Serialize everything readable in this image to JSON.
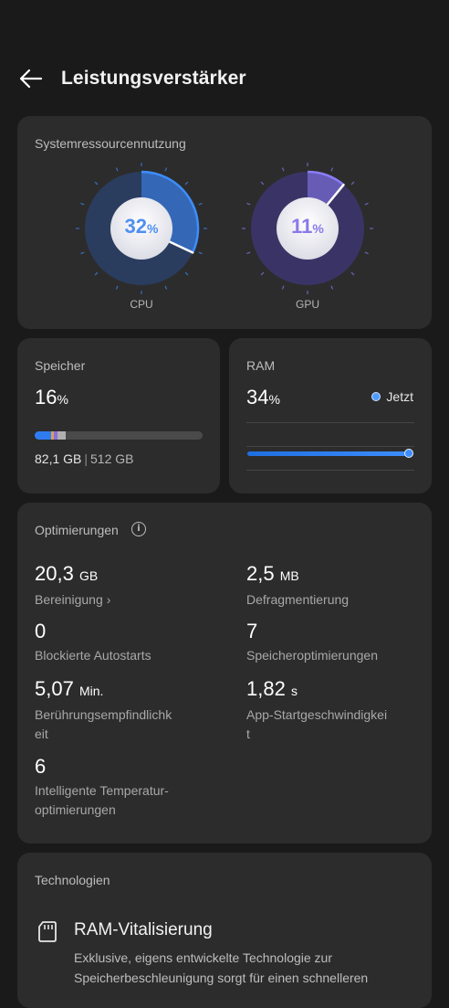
{
  "header": {
    "title": "Leistungsverstärker",
    "back_icon": "arrow-left-icon"
  },
  "system": {
    "title": "Systemressourcennutzung",
    "cpu": {
      "value": "32",
      "unit": "%",
      "caption": "CPU",
      "percent": 32,
      "color": "#3d8dff"
    },
    "gpu": {
      "value": "11",
      "unit": "%",
      "caption": "GPU",
      "percent": 11,
      "color": "#8b7cf6"
    }
  },
  "storage": {
    "title": "Speicher",
    "value": "16",
    "unit": "%",
    "used": "82,1 GB",
    "separator": "|",
    "total": "512 GB",
    "percent": 16
  },
  "ram": {
    "title": "RAM",
    "value": "34",
    "unit": "%",
    "legend": "Jetzt"
  },
  "optimizations": {
    "title": "Optimierungen",
    "info_icon": "info-icon",
    "items": [
      {
        "value": "20,3",
        "unit": "GB",
        "label": "Bereinigung",
        "chevron": "›"
      },
      {
        "value": "2,5",
        "unit": "MB",
        "label": "Defragmentierung"
      },
      {
        "value": "0",
        "unit": "",
        "label": "Blockierte Autostarts"
      },
      {
        "value": "7",
        "unit": "",
        "label": "Speicheroptimierungen"
      },
      {
        "value": "5,07",
        "unit": "Min.",
        "label_lines": [
          "Berührungsempfindlichk",
          "eit"
        ]
      },
      {
        "value": "1,82",
        "unit": "s",
        "label_lines": [
          "App-Startgeschwindigkei",
          "t"
        ]
      },
      {
        "value": "6",
        "unit": "",
        "label_lines": [
          "Intelligente Temperatur-",
          "optimierungen"
        ]
      }
    ]
  },
  "technologies": {
    "title": "Technologien",
    "item": {
      "icon": "sd-card-icon",
      "title": "RAM-Vitalisierung",
      "desc_lines": [
        "Exklusive, eigens entwickelte Technologie zur",
        "Speicherbeschleunigung sorgt für einen schnelleren"
      ]
    }
  }
}
